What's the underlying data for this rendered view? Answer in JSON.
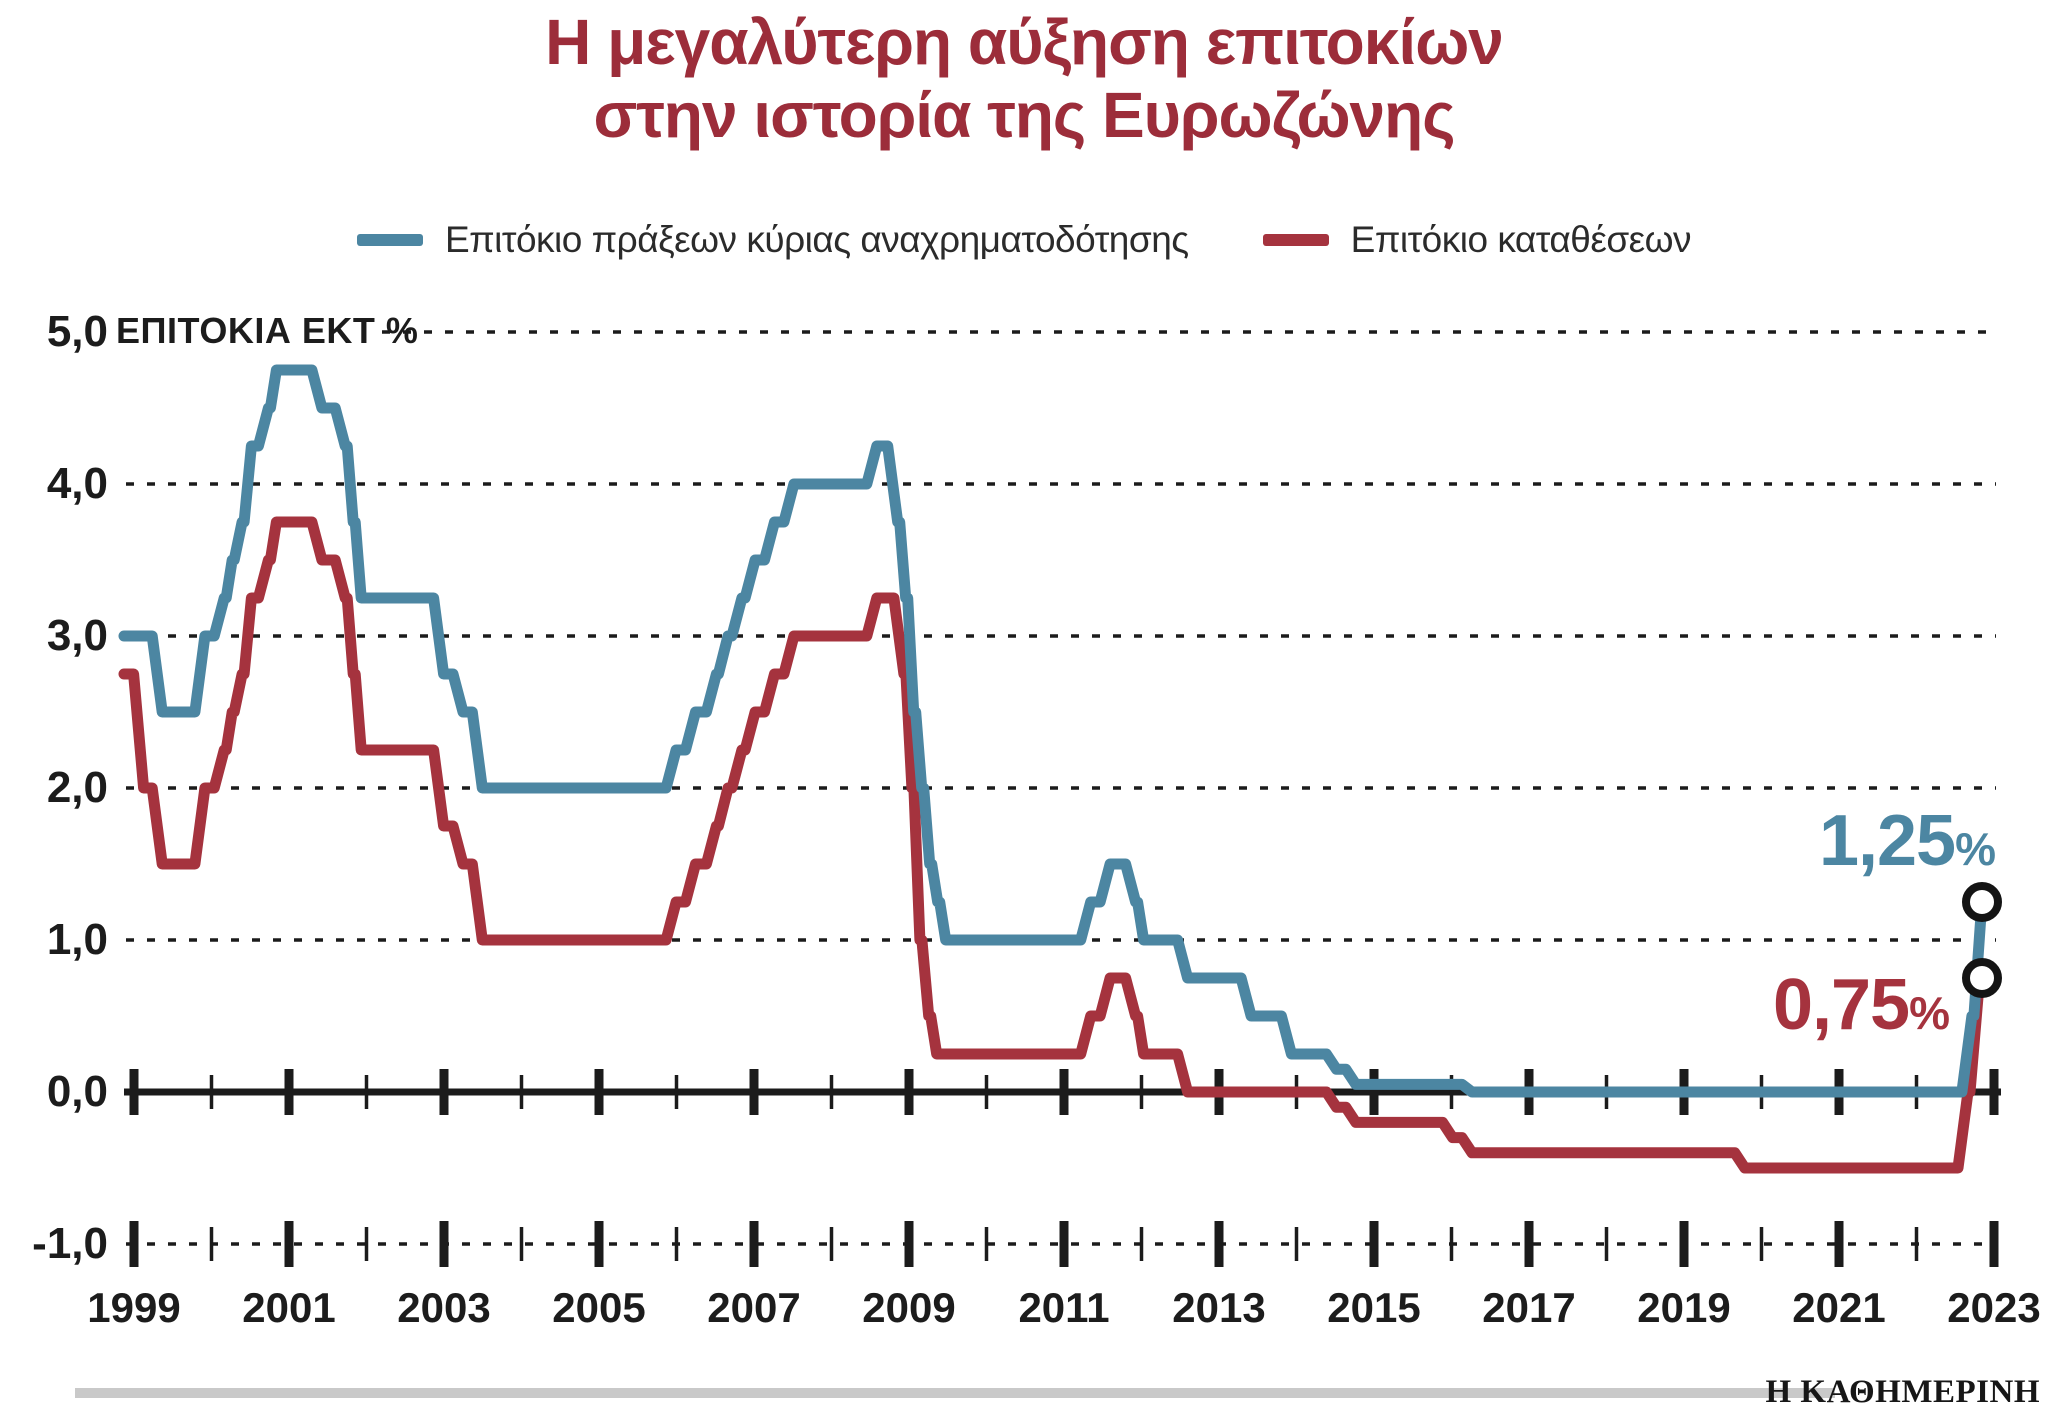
{
  "header": {
    "title_line1": "Η μεγαλύτερη αύξηση επιτοκίων",
    "title_line2": "στην ιστορία της Ευρωζώνης"
  },
  "footer": {
    "brand": "Η ΚΑΘΗΜΕΡΙΝΗ"
  },
  "colors": {
    "line_blue": "#4c86a2",
    "line_red": "#a5333e",
    "title_red": "#9c2d3a",
    "axis_black": "#1b1b1b",
    "divider_gray": "#c9c9c9",
    "marker_ring": "#141414"
  },
  "chart_data": {
    "type": "line",
    "title": "Η μεγαλύτερη αύξηση επιτοκίων στην ιστορία της Ευρωζώνης",
    "y_axis": {
      "label": "ΕΠΙΤΟΚΙΑ ΕΚΤ %",
      "tick_labels": [
        "5,0",
        "4,0",
        "3,0",
        "2,0",
        "1,0",
        "0,0",
        "-1,0"
      ],
      "tick_values": [
        5,
        4,
        3,
        2,
        1,
        0,
        -1
      ],
      "range": [
        -1,
        5
      ],
      "gridlines_dotted": [
        5,
        4,
        3,
        2,
        1,
        -1
      ],
      "zero_axis_solid": true
    },
    "x_axis": {
      "labels": [
        "1999",
        "2001",
        "2003",
        "2005",
        "2007",
        "2009",
        "2011",
        "2013",
        "2015",
        "2017",
        "2019",
        "2021",
        "2023"
      ],
      "labeled_years": [
        1999,
        2001,
        2003,
        2005,
        2007,
        2009,
        2011,
        2013,
        2015,
        2017,
        2019,
        2021,
        2023
      ],
      "tick_year_start": 1999,
      "tick_year_end": 2023,
      "range": [
        1999,
        2023.8
      ]
    },
    "legend_position": "top-center",
    "series": [
      {
        "name": "Επιτόκιο πράξεων κύριας αναχρηματοδότησης",
        "color": "#4c86a2",
        "end_value": 1.25,
        "end_label": "1,25",
        "end_suffix": "%",
        "changes": [
          [
            1999.0,
            3.0
          ],
          [
            1999.3,
            2.5
          ],
          [
            1999.85,
            3.0
          ],
          [
            2000.1,
            3.25
          ],
          [
            2000.2,
            3.5
          ],
          [
            2000.33,
            3.75
          ],
          [
            2000.45,
            4.25
          ],
          [
            2000.67,
            4.5
          ],
          [
            2000.76,
            4.75
          ],
          [
            2001.36,
            4.5
          ],
          [
            2001.66,
            4.25
          ],
          [
            2001.72,
            3.75
          ],
          [
            2001.86,
            3.25
          ],
          [
            2002.93,
            2.75
          ],
          [
            2003.18,
            2.5
          ],
          [
            2003.43,
            2.0
          ],
          [
            2005.93,
            2.25
          ],
          [
            2006.18,
            2.5
          ],
          [
            2006.45,
            2.75
          ],
          [
            2006.6,
            3.0
          ],
          [
            2006.78,
            3.25
          ],
          [
            2006.95,
            3.5
          ],
          [
            2007.2,
            3.75
          ],
          [
            2007.45,
            4.0
          ],
          [
            2008.52,
            4.25
          ],
          [
            2008.79,
            3.75
          ],
          [
            2008.87,
            3.25
          ],
          [
            2008.95,
            2.5
          ],
          [
            2009.06,
            2.0
          ],
          [
            2009.19,
            1.5
          ],
          [
            2009.27,
            1.25
          ],
          [
            2009.37,
            1.0
          ],
          [
            2011.28,
            1.25
          ],
          [
            2011.53,
            1.5
          ],
          [
            2011.86,
            1.25
          ],
          [
            2011.95,
            1.0
          ],
          [
            2012.53,
            0.75
          ],
          [
            2013.35,
            0.5
          ],
          [
            2013.87,
            0.25
          ],
          [
            2014.45,
            0.15
          ],
          [
            2014.7,
            0.05
          ],
          [
            2016.2,
            0.0
          ],
          [
            2022.65,
            0.5
          ],
          [
            2022.78,
            1.25
          ]
        ]
      },
      {
        "name": "Επιτόκιο καταθέσεων",
        "color": "#a5333e",
        "end_value": 0.75,
        "end_label": "0,75",
        "end_suffix": "%",
        "changes": [
          [
            1999.0,
            2.75
          ],
          [
            1999.06,
            2.0
          ],
          [
            1999.3,
            1.5
          ],
          [
            1999.85,
            2.0
          ],
          [
            2000.1,
            2.25
          ],
          [
            2000.2,
            2.5
          ],
          [
            2000.33,
            2.75
          ],
          [
            2000.45,
            3.25
          ],
          [
            2000.67,
            3.5
          ],
          [
            2000.76,
            3.75
          ],
          [
            2001.36,
            3.5
          ],
          [
            2001.66,
            3.25
          ],
          [
            2001.72,
            2.75
          ],
          [
            2001.86,
            2.25
          ],
          [
            2002.93,
            1.75
          ],
          [
            2003.18,
            1.5
          ],
          [
            2003.43,
            1.0
          ],
          [
            2005.93,
            1.25
          ],
          [
            2006.18,
            1.5
          ],
          [
            2006.45,
            1.75
          ],
          [
            2006.6,
            2.0
          ],
          [
            2006.78,
            2.25
          ],
          [
            2006.95,
            2.5
          ],
          [
            2007.2,
            2.75
          ],
          [
            2007.45,
            3.0
          ],
          [
            2008.52,
            3.25
          ],
          [
            2008.87,
            2.75
          ],
          [
            2008.95,
            2.0
          ],
          [
            2009.06,
            1.0
          ],
          [
            2009.19,
            0.5
          ],
          [
            2009.27,
            0.25
          ],
          [
            2011.28,
            0.5
          ],
          [
            2011.53,
            0.75
          ],
          [
            2011.86,
            0.5
          ],
          [
            2011.95,
            0.25
          ],
          [
            2012.53,
            0.0
          ],
          [
            2014.45,
            -0.1
          ],
          [
            2014.7,
            -0.2
          ],
          [
            2015.95,
            -0.3
          ],
          [
            2016.2,
            -0.4
          ],
          [
            2019.72,
            -0.5
          ],
          [
            2022.6,
            0.0
          ],
          [
            2022.75,
            0.75
          ]
        ]
      }
    ]
  }
}
